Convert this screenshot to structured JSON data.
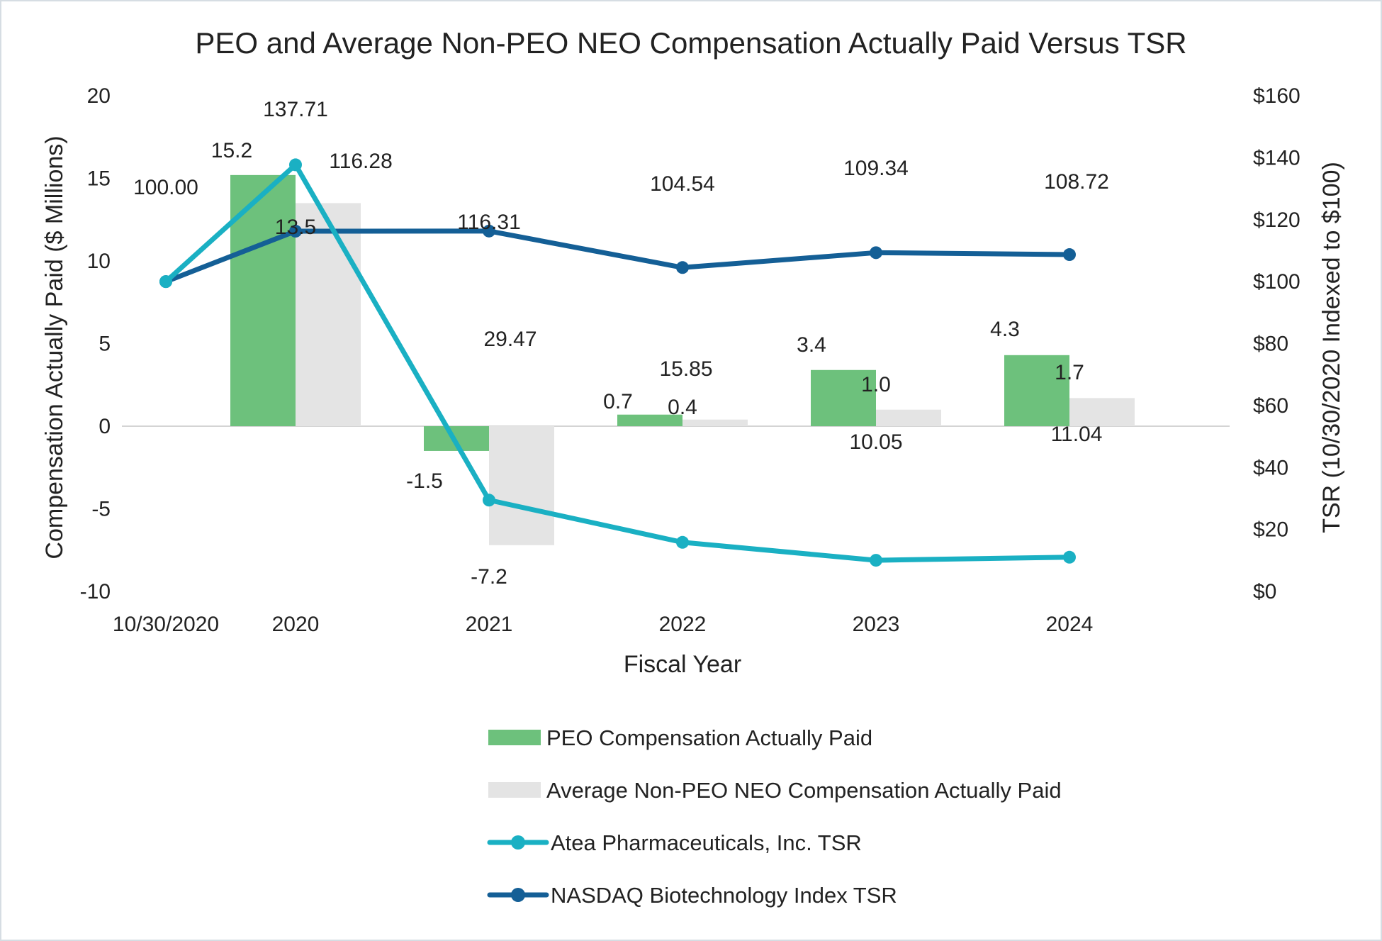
{
  "chart_data": {
    "type": "bar+line",
    "title": "PEO and Average Non-PEO NEO Compensation Actually Paid Versus TSR",
    "xlabel": "Fiscal Year",
    "ylabel_left": "Compensation Actually Paid ($ Millions)",
    "ylabel_right": "TSR (10/30/2020 Indexed to $100)",
    "categories": [
      "10/30/2020",
      "2020",
      "2021",
      "2022",
      "2023",
      "2024"
    ],
    "ylim_left": [
      -10,
      20
    ],
    "yticks_left": [
      "20",
      "15",
      "10",
      "5",
      "0",
      "-5",
      "-10"
    ],
    "ylim_right": [
      0,
      160
    ],
    "yticks_right": [
      "$160",
      "$140",
      "$120",
      "$100",
      "$80",
      "$60",
      "$40",
      "$20",
      "$0"
    ],
    "bar_series": [
      {
        "name": "PEO Compensation Actually Paid",
        "color": "#6dc17c",
        "values": [
          null,
          15.2,
          -1.5,
          0.7,
          3.4,
          4.3
        ],
        "labels": [
          "",
          "15.2",
          "-1.5",
          "0.7",
          "3.4",
          "4.3"
        ]
      },
      {
        "name": "Average Non-PEO NEO Compensation Actually Paid",
        "color": "#e4e4e4",
        "values": [
          null,
          13.5,
          -7.2,
          0.4,
          1.0,
          1.7
        ],
        "labels": [
          "",
          "13.5",
          "-7.2",
          "0.4",
          "1.0",
          "1.7"
        ]
      }
    ],
    "line_series": [
      {
        "name": "Atea Pharmaceuticals, Inc. TSR",
        "color": "#1ab0c3",
        "values": [
          100.0,
          137.71,
          29.47,
          15.85,
          10.05,
          11.04
        ],
        "labels": [
          "",
          "137.71",
          "29.47",
          "15.85",
          "10.05",
          "11.04"
        ]
      },
      {
        "name": "NASDAQ Biotechnology Index TSR",
        "color": "#145f96",
        "values": [
          100.0,
          116.28,
          116.31,
          104.54,
          109.34,
          108.72
        ],
        "labels": [
          "100.00",
          "116.28",
          "116.31",
          "104.54",
          "109.34",
          "108.72"
        ]
      }
    ],
    "legend_position": "bottom"
  }
}
